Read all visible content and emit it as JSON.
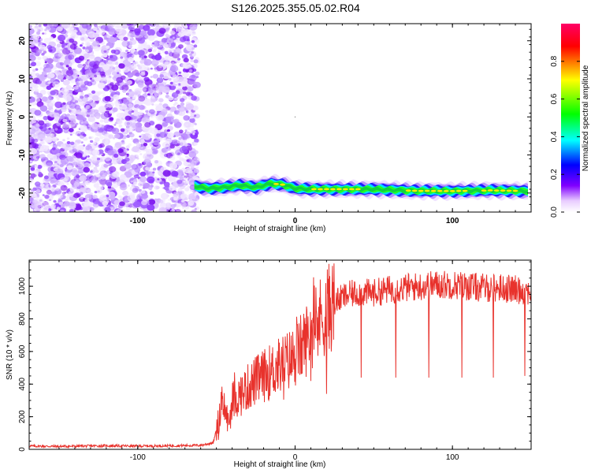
{
  "figure": {
    "title": "S126.2025.355.05.02.R04"
  },
  "chart_data": [
    {
      "type": "heatmap",
      "xlabel": "Height of straight line (km)",
      "ylabel": "Frequency (Hz)",
      "xlim": [
        -169,
        150
      ],
      "ylim": [
        -25,
        24.5
      ],
      "xticks": [
        -100,
        0,
        100
      ],
      "yticks": [
        -20,
        -10,
        0,
        10,
        20
      ],
      "grid": false,
      "noise_region": {
        "x_range": [
          -169,
          -62
        ],
        "y_range": [
          -25,
          24.5
        ]
      },
      "signal_ridge": {
        "x": [
          -64,
          -55,
          -45,
          -35,
          -25,
          -15,
          -8,
          0,
          10,
          30,
          50,
          75,
          100,
          125,
          148
        ],
        "frequency": [
          -18.2,
          -18.8,
          -18.5,
          -18.0,
          -18.5,
          -17.5,
          -17.8,
          -18.8,
          -19.0,
          -19.0,
          -19.0,
          -19.4,
          -19.5,
          -19.3,
          -19.5
        ]
      },
      "colorbar": {
        "label": "Normalized spectral amplitude",
        "range": [
          0,
          1
        ],
        "ticks": [
          "0.0",
          "0.2",
          "0.4",
          "0.6",
          "0.8"
        ],
        "tick_values": [
          0,
          0.2,
          0.4,
          0.6,
          0.8
        ],
        "colors": [
          "#ffffff",
          "#8000ff",
          "#0000ff",
          "#00ffff",
          "#00ff00",
          "#ffff00",
          "#ff0000",
          "#ff0066"
        ]
      }
    },
    {
      "type": "line",
      "xlabel": "Height of straight line (km)",
      "ylabel": "SNR (10 * v/v)",
      "xlim": [
        -169,
        150
      ],
      "ylim": [
        0,
        1160
      ],
      "xticks": [
        -100,
        0,
        100
      ],
      "yticks": [
        0,
        200,
        400,
        600,
        800,
        1000
      ],
      "grid": false,
      "series": [
        {
          "color": "#e8322c",
          "x": [
            -169,
            -150,
            -120,
            -100,
            -80,
            -60,
            -52,
            -48,
            -45,
            -42,
            -40,
            -35,
            -30,
            -25,
            -20,
            -15,
            -10,
            -5,
            0,
            5,
            10,
            15,
            20,
            25,
            30,
            35,
            40,
            50,
            60,
            70,
            80,
            90,
            100,
            110,
            120,
            130,
            140,
            150
          ],
          "y": [
            20,
            18,
            22,
            20,
            22,
            25,
            40,
            200,
            260,
            150,
            300,
            330,
            380,
            420,
            450,
            480,
            510,
            540,
            570,
            640,
            720,
            790,
            850,
            900,
            930,
            950,
            960,
            960,
            980,
            990,
            1000,
            1010,
            1010,
            1000,
            990,
            990,
            980,
            970
          ],
          "dips": [
            {
              "x": 42,
              "y": 440
            },
            {
              "x": 64,
              "y": 440
            },
            {
              "x": 85,
              "y": 440
            },
            {
              "x": 106,
              "y": 440
            },
            {
              "x": 126,
              "y": 440
            },
            {
              "x": 146,
              "y": 450
            },
            {
              "x": 20,
              "y": 340
            }
          ]
        }
      ]
    }
  ]
}
